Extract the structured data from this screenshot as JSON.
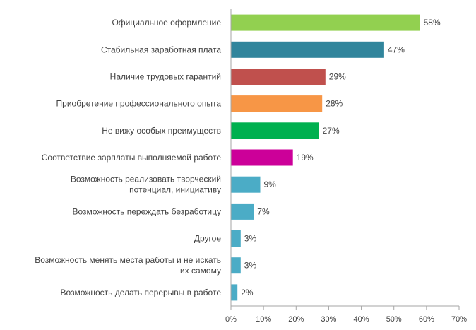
{
  "chart_data": {
    "type": "bar",
    "orientation": "horizontal",
    "title": "",
    "xlabel": "",
    "ylabel": "",
    "xlim": [
      0,
      70
    ],
    "x_ticks": [
      0,
      10,
      20,
      30,
      40,
      50,
      60,
      70
    ],
    "x_tick_labels": [
      "0%",
      "10%",
      "20%",
      "30%",
      "40%",
      "50%",
      "60%",
      "70%"
    ],
    "grid": false,
    "legend": "none",
    "bars": [
      {
        "label": [
          "Официальное оформление"
        ],
        "value": 58,
        "value_label": "58%",
        "color": "#92d050"
      },
      {
        "label": [
          "Стабильная заработная плата"
        ],
        "value": 47,
        "value_label": "47%",
        "color": "#31859c"
      },
      {
        "label": [
          "Наличие трудовых гарантий"
        ],
        "value": 29,
        "value_label": "29%",
        "color": "#c0504d"
      },
      {
        "label": [
          "Приобретение профессионального опыта"
        ],
        "value": 28,
        "value_label": "28%",
        "color": "#f79646"
      },
      {
        "label": [
          "Не вижу особых преимуществ"
        ],
        "value": 27,
        "value_label": "27%",
        "color": "#00b050"
      },
      {
        "label": [
          "Соответствие зарплаты выполняемой работе"
        ],
        "value": 19,
        "value_label": "19%",
        "color": "#cc0099"
      },
      {
        "label": [
          "Возможность реализовать творческий",
          "потенциал, инициативу"
        ],
        "value": 9,
        "value_label": "9%",
        "color": "#4bacc6"
      },
      {
        "label": [
          "Возможность переждать безработицу"
        ],
        "value": 7,
        "value_label": "7%",
        "color": "#4bacc6"
      },
      {
        "label": [
          "Другое"
        ],
        "value": 3,
        "value_label": "3%",
        "color": "#4bacc6"
      },
      {
        "label": [
          "Возможность менять места работы и не искать",
          "их самому"
        ],
        "value": 3,
        "value_label": "3%",
        "color": "#4bacc6"
      },
      {
        "label": [
          "Возможность делать перерывы в работе"
        ],
        "value": 2,
        "value_label": "2%",
        "color": "#4bacc6"
      }
    ]
  }
}
